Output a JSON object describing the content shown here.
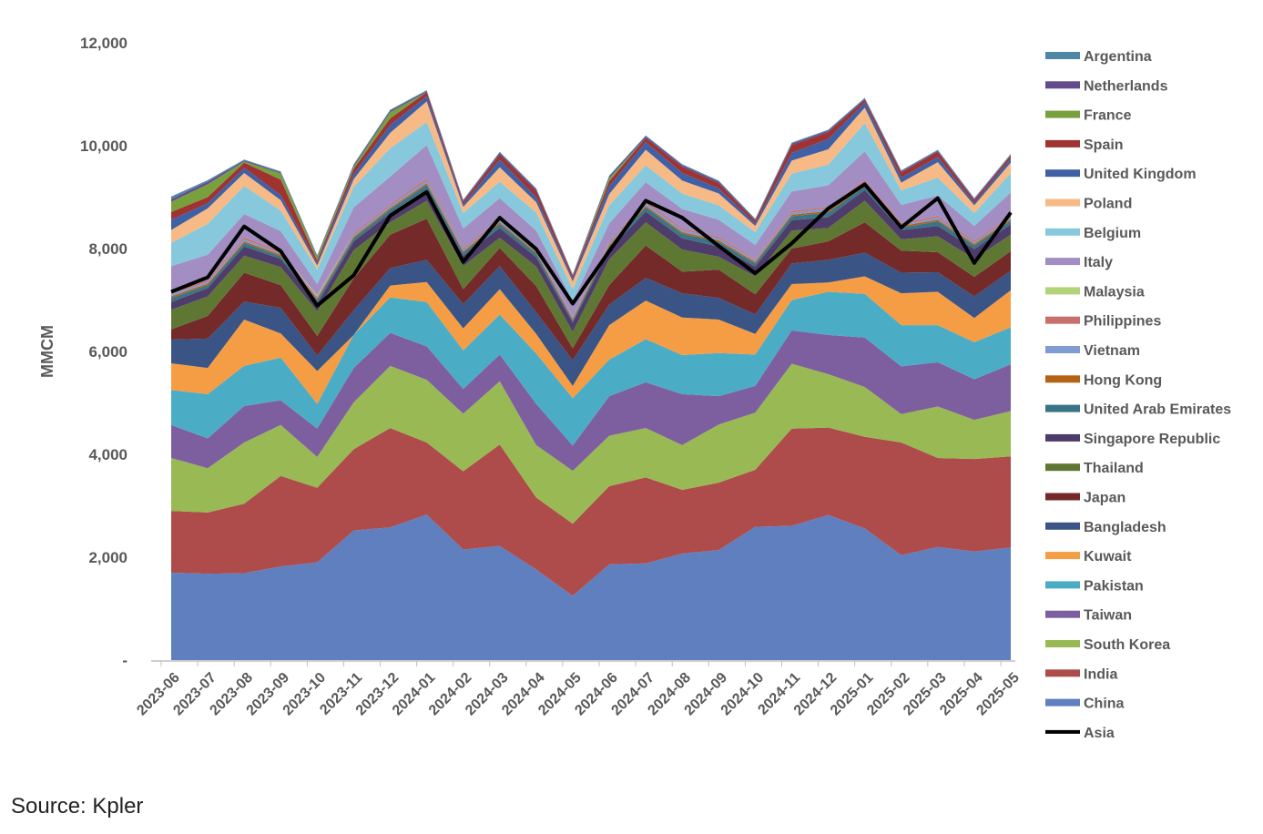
{
  "chart_data": {
    "type": "area",
    "stacked": true,
    "title": "",
    "xlabel": "",
    "ylabel": "MMCM",
    "ylim": [
      0,
      12000
    ],
    "yticks": [
      0,
      2000,
      4000,
      6000,
      8000,
      10000,
      12000
    ],
    "ytick_labels": [
      "-",
      "2,000",
      "4,000",
      "6,000",
      "8,000",
      "10,000",
      "12,000"
    ],
    "grid": false,
    "legend": "right",
    "categories": [
      "2023-06",
      "2023-07",
      "2023-08",
      "2023-09",
      "2023-10",
      "2023-11",
      "2023-12",
      "2024-01",
      "2024-02",
      "2024-03",
      "2024-04",
      "2024-05",
      "2024-06",
      "2024-07",
      "2024-08",
      "2024-09",
      "2024-10",
      "2024-11",
      "2024-12",
      "2025-01",
      "2025-02",
      "2025-03",
      "2025-04",
      "2025-05"
    ],
    "series": [
      {
        "name": "China",
        "color": "#5F7FBF",
        "values": [
          1700,
          1680,
          1690,
          1820,
          1900,
          2520,
          2580,
          2830,
          2150,
          2220,
          1760,
          1250,
          1860,
          1880,
          2070,
          2140,
          2590,
          2610,
          2820,
          2560,
          2040,
          2200,
          2110,
          2190
        ]
      },
      {
        "name": "India",
        "color": "#AD4C4A",
        "values": [
          1200,
          1190,
          1350,
          1760,
          1450,
          1580,
          1930,
          1400,
          1520,
          1970,
          1400,
          1400,
          1520,
          1670,
          1240,
          1310,
          1110,
          1890,
          1700,
          1780,
          2190,
          1730,
          1800,
          1770
        ]
      },
      {
        "name": "South Korea",
        "color": "#98B954",
        "values": [
          1030,
          860,
          1190,
          990,
          600,
          910,
          1210,
          1220,
          1120,
          1230,
          1020,
          1030,
          980,
          960,
          870,
          1130,
          1110,
          1260,
          1040,
          970,
          550,
          1000,
          760,
          880
        ]
      },
      {
        "name": "Taiwan",
        "color": "#7D5FA0",
        "values": [
          640,
          580,
          710,
          480,
          550,
          670,
          640,
          650,
          480,
          520,
          800,
          490,
          770,
          890,
          990,
          550,
          520,
          650,
          760,
          960,
          930,
          860,
          790,
          910
        ]
      },
      {
        "name": "Pakistan",
        "color": "#4BACC6",
        "values": [
          680,
          860,
          780,
          830,
          480,
          640,
          690,
          860,
          750,
          780,
          980,
          920,
          710,
          840,
          760,
          840,
          610,
          590,
          840,
          850,
          800,
          720,
          720,
          720
        ]
      },
      {
        "name": "Kuwait",
        "color": "#F59D45",
        "values": [
          520,
          510,
          900,
          470,
          640,
          0,
          230,
          390,
          430,
          490,
          380,
          240,
          670,
          750,
          730,
          650,
          400,
          310,
          180,
          340,
          620,
          650,
          470,
          720
        ]
      },
      {
        "name": "Bangladesh",
        "color": "#3A5485",
        "values": [
          460,
          570,
          350,
          500,
          300,
          480,
          340,
          430,
          470,
          450,
          420,
          500,
          400,
          440,
          470,
          420,
          380,
          400,
          440,
          460,
          400,
          380,
          420,
          380
        ]
      },
      {
        "name": "Japan",
        "color": "#732A29",
        "values": [
          200,
          440,
          560,
          440,
          380,
          620,
          650,
          800,
          290,
          350,
          510,
          230,
          380,
          630,
          420,
          550,
          390,
          290,
          360,
          590,
          430,
          390,
          380,
          380
        ]
      },
      {
        "name": "Thailand",
        "color": "#5E7733",
        "values": [
          380,
          380,
          330,
          350,
          480,
          550,
          240,
          350,
          450,
          200,
          380,
          320,
          500,
          450,
          430,
          250,
          350,
          350,
          260,
          420,
          220,
          310,
          350,
          320
        ]
      },
      {
        "name": "Singapore Republic",
        "color": "#4E3C6A",
        "values": [
          150,
          160,
          180,
          160,
          150,
          170,
          180,
          220,
          200,
          190,
          180,
          180,
          190,
          210,
          220,
          200,
          190,
          200,
          210,
          210,
          180,
          200,
          190,
          200
        ]
      },
      {
        "name": "United Arab Emirates",
        "color": "#3A7587",
        "values": [
          80,
          60,
          70,
          50,
          70,
          60,
          70,
          90,
          60,
          80,
          70,
          40,
          60,
          80,
          90,
          90,
          60,
          80,
          90,
          70,
          50,
          90,
          70,
          70
        ]
      },
      {
        "name": "Hong Kong",
        "color": "#B46213",
        "values": [
          30,
          30,
          30,
          30,
          30,
          30,
          30,
          30,
          30,
          30,
          30,
          30,
          30,
          30,
          30,
          30,
          30,
          30,
          30,
          30,
          30,
          30,
          30,
          30
        ]
      },
      {
        "name": "Vietnam",
        "color": "#7F9BD2",
        "values": [
          50,
          30,
          40,
          30,
          20,
          40,
          40,
          50,
          30,
          40,
          40,
          30,
          40,
          50,
          40,
          40,
          30,
          40,
          50,
          50,
          30,
          40,
          30,
          40
        ]
      },
      {
        "name": "Philippines",
        "color": "#C6716E",
        "values": [
          40,
          30,
          40,
          30,
          20,
          30,
          30,
          40,
          30,
          30,
          30,
          20,
          30,
          40,
          30,
          30,
          20,
          30,
          30,
          40,
          30,
          30,
          30,
          30
        ]
      },
      {
        "name": "Malaysia",
        "color": "#B3D37A",
        "values": [
          0,
          0,
          0,
          0,
          20,
          0,
          0,
          0,
          0,
          0,
          0,
          0,
          0,
          0,
          0,
          0,
          0,
          0,
          0,
          0,
          0,
          0,
          0,
          0
        ]
      },
      {
        "name": "Italy",
        "color": "#A28EC3",
        "values": [
          500,
          500,
          450,
          400,
          220,
          500,
          540,
          650,
          380,
          400,
          350,
          300,
          350,
          370,
          380,
          330,
          280,
          380,
          420,
          560,
          350,
          400,
          290,
          450
        ]
      },
      {
        "name": "Belgium",
        "color": "#88C8DC",
        "values": [
          450,
          600,
          550,
          400,
          280,
          400,
          550,
          450,
          300,
          320,
          350,
          230,
          350,
          330,
          300,
          280,
          250,
          350,
          400,
          550,
          280,
          350,
          250,
          380
        ]
      },
      {
        "name": "Poland",
        "color": "#F7BA86",
        "values": [
          250,
          300,
          250,
          200,
          80,
          150,
          300,
          400,
          120,
          280,
          200,
          150,
          220,
          300,
          250,
          230,
          120,
          250,
          300,
          300,
          150,
          300,
          150,
          200
        ]
      },
      {
        "name": "United Kingdom",
        "color": "#4060A6",
        "values": [
          200,
          100,
          100,
          100,
          50,
          100,
          150,
          100,
          50,
          150,
          100,
          50,
          150,
          150,
          150,
          100,
          50,
          150,
          200,
          100,
          100,
          100,
          50,
          80
        ]
      },
      {
        "name": "Spain",
        "color": "#9E3331",
        "values": [
          150,
          120,
          100,
          300,
          50,
          100,
          130,
          80,
          50,
          100,
          120,
          50,
          100,
          80,
          120,
          100,
          50,
          150,
          130,
          50,
          100,
          100,
          50,
          50
        ]
      },
      {
        "name": "France",
        "color": "#78A03D",
        "values": [
          200,
          250,
          20,
          120,
          60,
          40,
          120,
          0,
          0,
          0,
          0,
          0,
          60,
          0,
          0,
          0,
          0,
          0,
          0,
          0,
          0,
          0,
          0,
          0
        ]
      },
      {
        "name": "Netherlands",
        "color": "#644B8C",
        "values": [
          50,
          50,
          20,
          20,
          20,
          30,
          30,
          20,
          20,
          30,
          30,
          20,
          30,
          30,
          30,
          30,
          20,
          30,
          30,
          20,
          20,
          20,
          20,
          20
        ]
      },
      {
        "name": "Argentina",
        "color": "#4F87A6",
        "values": [
          50,
          30,
          20,
          20,
          20,
          20,
          20,
          20,
          20,
          20,
          20,
          20,
          20,
          20,
          20,
          20,
          20,
          20,
          20,
          20,
          20,
          20,
          20,
          20
        ]
      }
    ],
    "line_series": {
      "name": "Asia",
      "color": "#000000",
      "values": [
        7160,
        7440,
        8430,
        7950,
        6890,
        7480,
        8640,
        9100,
        7740,
        8600,
        7990,
        6930,
        7950,
        8930,
        8600,
        8050,
        7520,
        8100,
        8780,
        9250,
        8410,
        8980,
        7720,
        8700
      ]
    }
  },
  "source": "Source: Kpler"
}
